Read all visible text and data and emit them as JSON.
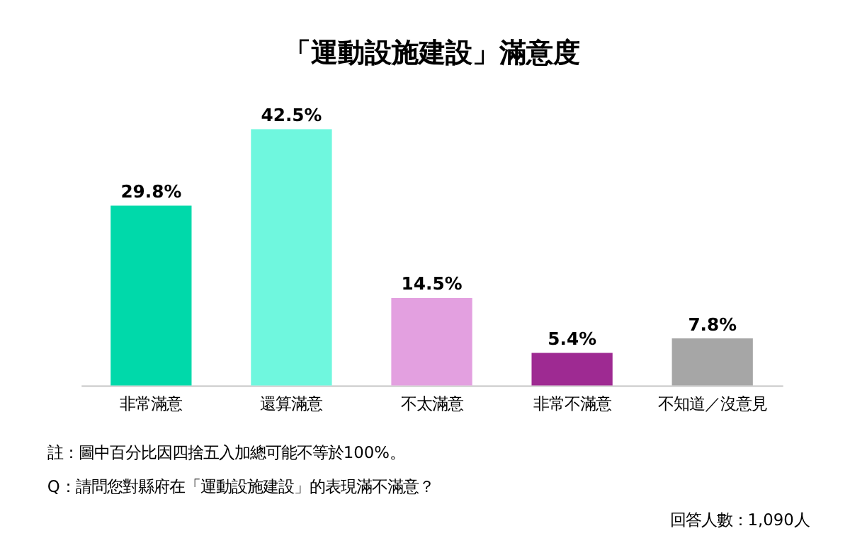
{
  "chart_data": {
    "type": "bar",
    "title": "「運動設施建設」滿意度",
    "categories": [
      "非常滿意",
      "還算滿意",
      "不太滿意",
      "非常不滿意",
      "不知道／沒意見"
    ],
    "values": [
      29.8,
      42.5,
      14.5,
      5.4,
      7.8
    ],
    "value_labels": [
      "29.8%",
      "42.5%",
      "14.5%",
      "5.4%",
      "7.8%"
    ],
    "colors": [
      "#00d9aa",
      "#6ff7de",
      "#e3a0e0",
      "#9e2a92",
      "#a6a6a6"
    ],
    "annotations": [
      "註：圖中百分比因四捨五入加總可能不等於100%。",
      "Q：請問您對縣府在「運動設施建設」的表現滿不滿意？",
      "回答人數：1,090人"
    ]
  }
}
